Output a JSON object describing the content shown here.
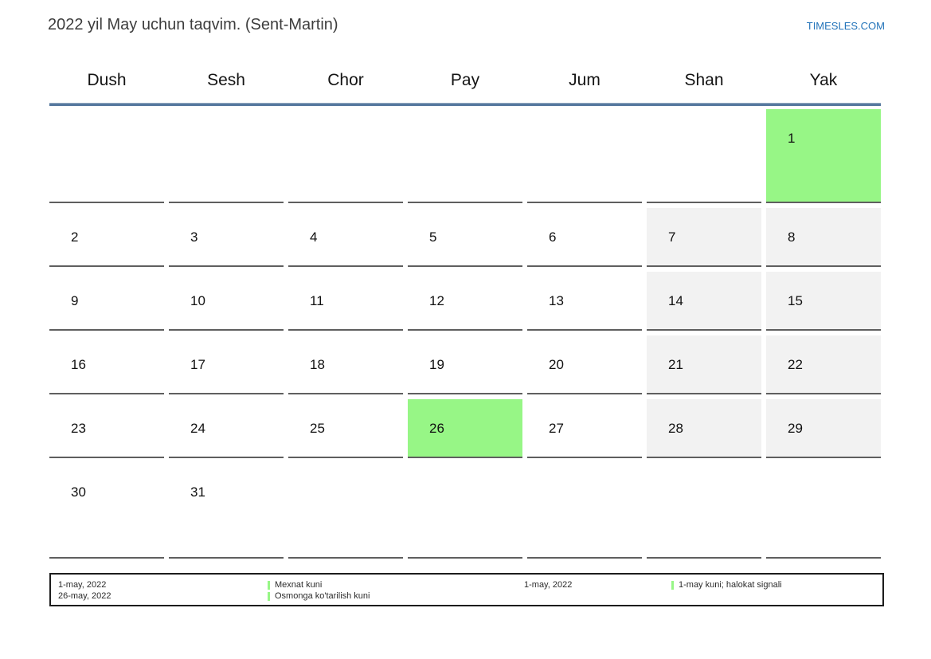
{
  "page": {
    "title": "2022 yil May uchun taqvim. (Sent-Martin)",
    "site_link": "TIMESLES.COM"
  },
  "calendar": {
    "weekday_headers": [
      "Dush",
      "Sesh",
      "Chor",
      "Pay",
      "Jum",
      "Shan",
      "Yak"
    ],
    "weeks": [
      [
        {
          "day": "",
          "type": "empty"
        },
        {
          "day": "",
          "type": "empty"
        },
        {
          "day": "",
          "type": "empty"
        },
        {
          "day": "",
          "type": "empty"
        },
        {
          "day": "",
          "type": "empty"
        },
        {
          "day": "",
          "type": "empty"
        },
        {
          "day": "1",
          "type": "holiday"
        }
      ],
      [
        {
          "day": "2",
          "type": "normal"
        },
        {
          "day": "3",
          "type": "normal"
        },
        {
          "day": "4",
          "type": "normal"
        },
        {
          "day": "5",
          "type": "normal"
        },
        {
          "day": "6",
          "type": "normal"
        },
        {
          "day": "7",
          "type": "weekend"
        },
        {
          "day": "8",
          "type": "weekend"
        }
      ],
      [
        {
          "day": "9",
          "type": "normal"
        },
        {
          "day": "10",
          "type": "normal"
        },
        {
          "day": "11",
          "type": "normal"
        },
        {
          "day": "12",
          "type": "normal"
        },
        {
          "day": "13",
          "type": "normal"
        },
        {
          "day": "14",
          "type": "weekend"
        },
        {
          "day": "15",
          "type": "weekend"
        }
      ],
      [
        {
          "day": "16",
          "type": "normal"
        },
        {
          "day": "17",
          "type": "normal"
        },
        {
          "day": "18",
          "type": "normal"
        },
        {
          "day": "19",
          "type": "normal"
        },
        {
          "day": "20",
          "type": "normal"
        },
        {
          "day": "21",
          "type": "weekend"
        },
        {
          "day": "22",
          "type": "weekend"
        }
      ],
      [
        {
          "day": "23",
          "type": "normal"
        },
        {
          "day": "24",
          "type": "normal"
        },
        {
          "day": "25",
          "type": "normal"
        },
        {
          "day": "26",
          "type": "holiday"
        },
        {
          "day": "27",
          "type": "normal"
        },
        {
          "day": "28",
          "type": "weekend"
        },
        {
          "day": "29",
          "type": "weekend"
        }
      ],
      [
        {
          "day": "30",
          "type": "normal"
        },
        {
          "day": "31",
          "type": "normal"
        },
        {
          "day": "",
          "type": "empty"
        },
        {
          "day": "",
          "type": "empty"
        },
        {
          "day": "",
          "type": "empty"
        },
        {
          "day": "",
          "type": "empty"
        },
        {
          "day": "",
          "type": "empty"
        }
      ]
    ]
  },
  "legend": {
    "left_dates": [
      "1-may, 2022",
      "26-may, 2022"
    ],
    "holiday_names": [
      "Mexnat kuni",
      "Osmonga ko'tarilish kuni"
    ],
    "right_date": "1-may, 2022",
    "right_name": "1-may kuni; halokat signali"
  },
  "colors": {
    "holiday_green": "#97f686",
    "weekend_gray": "#f2f2f2",
    "header_line_blue": "#56789e",
    "link_blue": "#2273b9",
    "cell_border_gray": "#5f5f5f"
  }
}
